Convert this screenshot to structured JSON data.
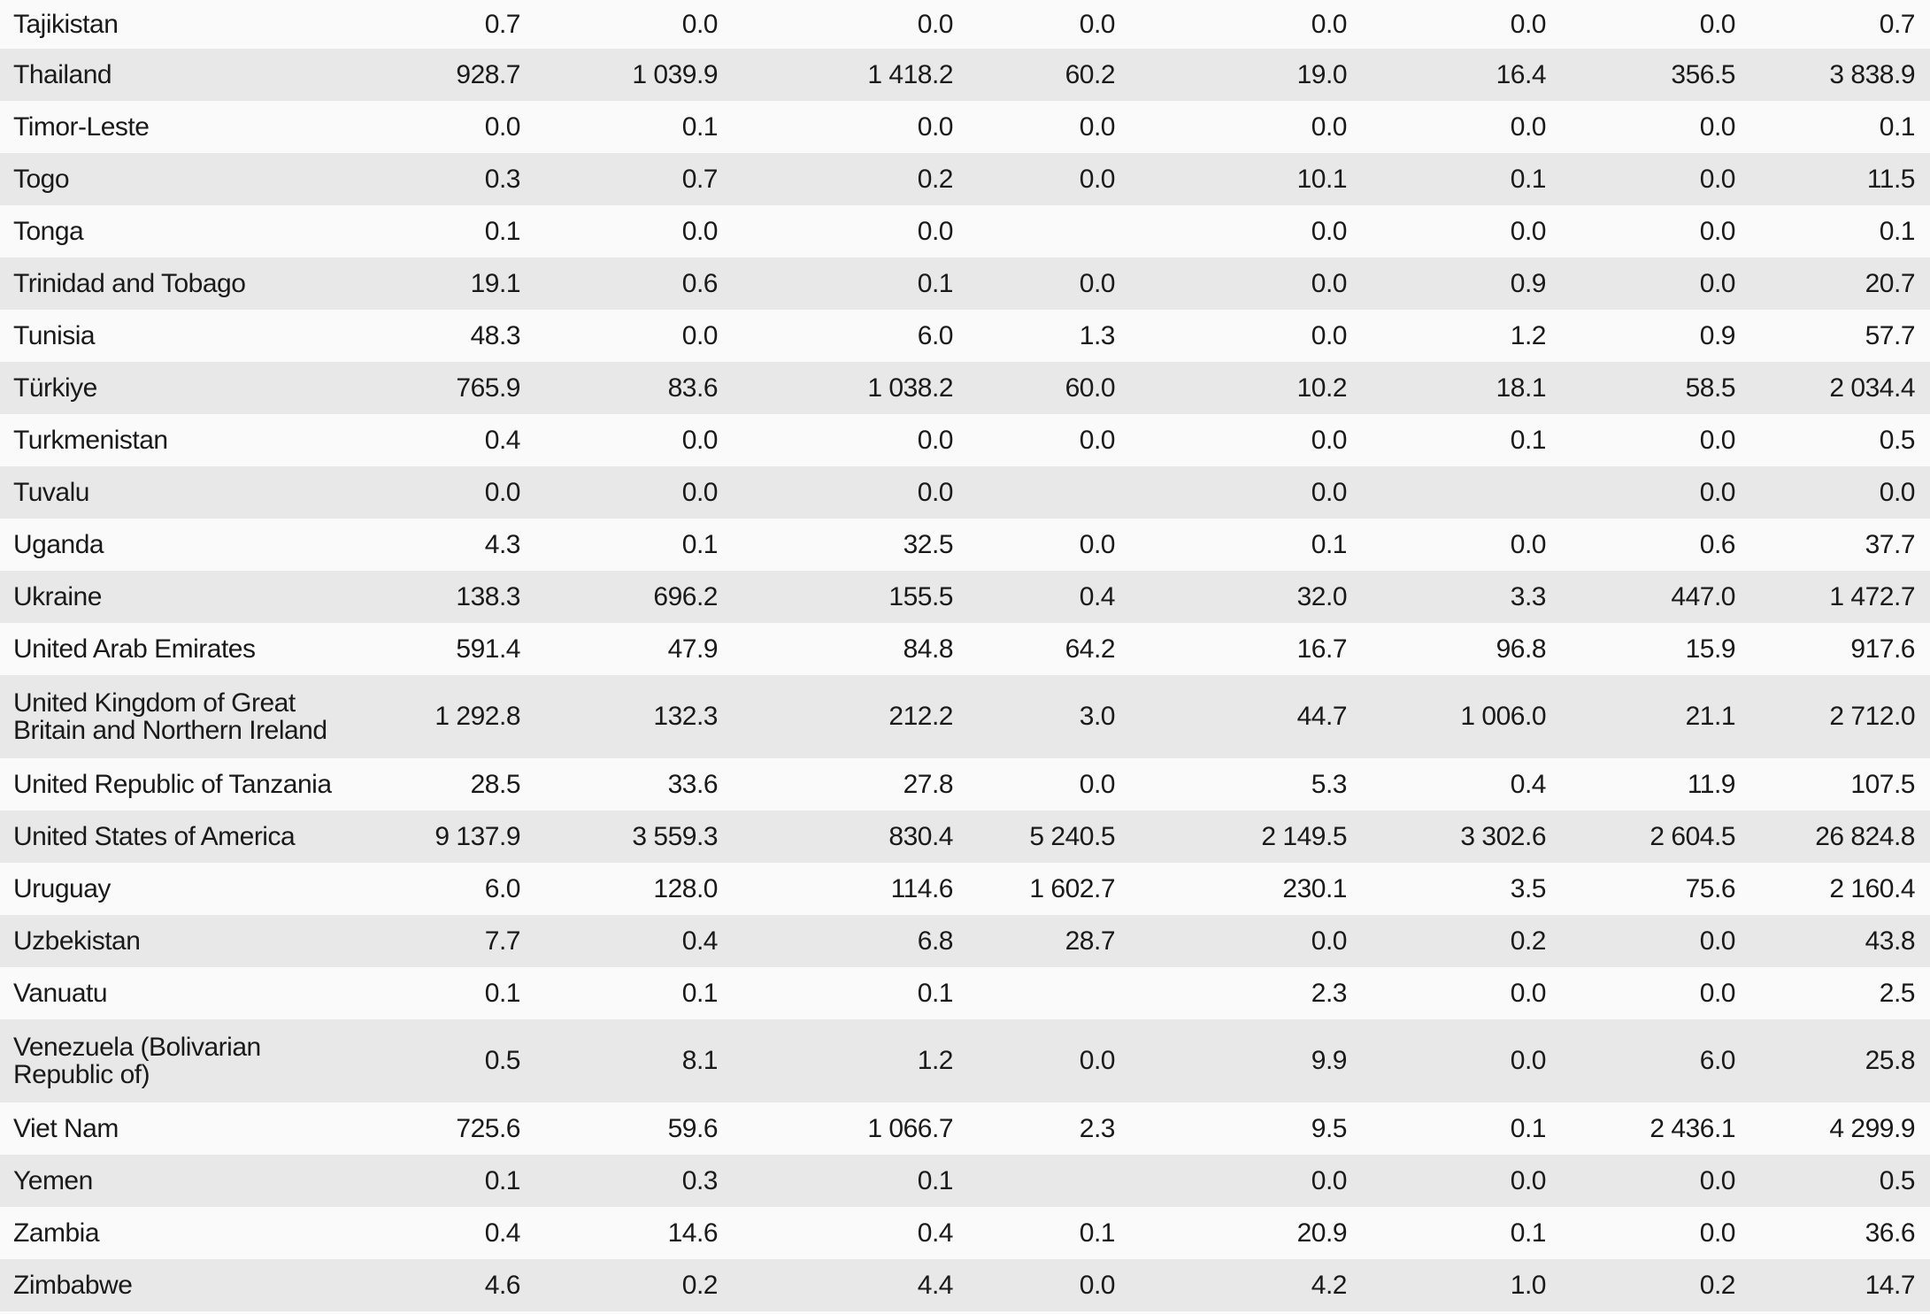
{
  "table": {
    "rows": [
      {
        "country": "Tajikistan",
        "values": [
          "0.7",
          "0.0",
          "0.0",
          "0.0",
          "0.0",
          "0.0",
          "0.0",
          "0.7"
        ]
      },
      {
        "country": "Thailand",
        "values": [
          "928.7",
          "1 039.9",
          "1 418.2",
          "60.2",
          "19.0",
          "16.4",
          "356.5",
          "3 838.9"
        ]
      },
      {
        "country": "Timor-Leste",
        "values": [
          "0.0",
          "0.1",
          "0.0",
          "0.0",
          "0.0",
          "0.0",
          "0.0",
          "0.1"
        ]
      },
      {
        "country": "Togo",
        "values": [
          "0.3",
          "0.7",
          "0.2",
          "0.0",
          "10.1",
          "0.1",
          "0.0",
          "11.5"
        ]
      },
      {
        "country": "Tonga",
        "values": [
          "0.1",
          "0.0",
          "0.0",
          "",
          "0.0",
          "0.0",
          "0.0",
          "0.1"
        ]
      },
      {
        "country": "Trinidad and Tobago",
        "values": [
          "19.1",
          "0.6",
          "0.1",
          "0.0",
          "0.0",
          "0.9",
          "0.0",
          "20.7"
        ]
      },
      {
        "country": "Tunisia",
        "values": [
          "48.3",
          "0.0",
          "6.0",
          "1.3",
          "0.0",
          "1.2",
          "0.9",
          "57.7"
        ]
      },
      {
        "country": "Türkiye",
        "values": [
          "765.9",
          "83.6",
          "1 038.2",
          "60.0",
          "10.2",
          "18.1",
          "58.5",
          "2 034.4"
        ]
      },
      {
        "country": "Turkmenistan",
        "values": [
          "0.4",
          "0.0",
          "0.0",
          "0.0",
          "0.0",
          "0.1",
          "0.0",
          "0.5"
        ]
      },
      {
        "country": "Tuvalu",
        "values": [
          "0.0",
          "0.0",
          "0.0",
          "",
          "0.0",
          "",
          "0.0",
          "0.0"
        ]
      },
      {
        "country": "Uganda",
        "values": [
          "4.3",
          "0.1",
          "32.5",
          "0.0",
          "0.1",
          "0.0",
          "0.6",
          "37.7"
        ]
      },
      {
        "country": "Ukraine",
        "values": [
          "138.3",
          "696.2",
          "155.5",
          "0.4",
          "32.0",
          "3.3",
          "447.0",
          "1 472.7"
        ]
      },
      {
        "country": "United Arab Emirates",
        "values": [
          "591.4",
          "47.9",
          "84.8",
          "64.2",
          "16.7",
          "96.8",
          "15.9",
          "917.6"
        ]
      },
      {
        "country": "United Kingdom of Great Britain and Northern Ireland",
        "values": [
          "1 292.8",
          "132.3",
          "212.2",
          "3.0",
          "44.7",
          "1 006.0",
          "21.1",
          "2 712.0"
        ]
      },
      {
        "country": "United Republic of Tanzania",
        "values": [
          "28.5",
          "33.6",
          "27.8",
          "0.0",
          "5.3",
          "0.4",
          "11.9",
          "107.5"
        ]
      },
      {
        "country": "United States of America",
        "values": [
          "9 137.9",
          "3 559.3",
          "830.4",
          "5 240.5",
          "2 149.5",
          "3 302.6",
          "2 604.5",
          "26 824.8"
        ]
      },
      {
        "country": "Uruguay",
        "values": [
          "6.0",
          "128.0",
          "114.6",
          "1 602.7",
          "230.1",
          "3.5",
          "75.6",
          "2 160.4"
        ]
      },
      {
        "country": "Uzbekistan",
        "values": [
          "7.7",
          "0.4",
          "6.8",
          "28.7",
          "0.0",
          "0.2",
          "0.0",
          "43.8"
        ]
      },
      {
        "country": "Vanuatu",
        "values": [
          "0.1",
          "0.1",
          "0.1",
          "",
          "2.3",
          "0.0",
          "0.0",
          "2.5"
        ]
      },
      {
        "country": "Venezuela (Bolivarian Republic of)",
        "values": [
          "0.5",
          "8.1",
          "1.2",
          "0.0",
          "9.9",
          "0.0",
          "6.0",
          "25.8"
        ]
      },
      {
        "country": "Viet Nam",
        "values": [
          "725.6",
          "59.6",
          "1 066.7",
          "2.3",
          "9.5",
          "0.1",
          "2 436.1",
          "4 299.9"
        ]
      },
      {
        "country": "Yemen",
        "values": [
          "0.1",
          "0.3",
          "0.1",
          "",
          "0.0",
          "0.0",
          "0.0",
          "0.5"
        ]
      },
      {
        "country": "Zambia",
        "values": [
          "0.4",
          "14.6",
          "0.4",
          "0.1",
          "20.9",
          "0.1",
          "0.0",
          "36.6"
        ]
      },
      {
        "country": "Zimbabwe",
        "values": [
          "4.6",
          "0.2",
          "4.4",
          "0.0",
          "4.2",
          "1.0",
          "0.2",
          "14.7"
        ]
      }
    ]
  }
}
